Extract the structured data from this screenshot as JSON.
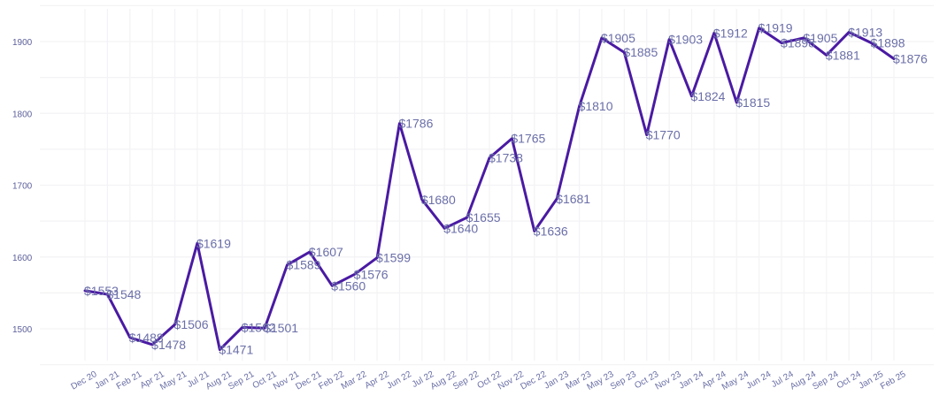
{
  "chart_data": {
    "type": "line",
    "title": "",
    "xlabel": "",
    "ylabel": "",
    "ylim": [
      1450,
      1950
    ],
    "yticks": [
      1500,
      1600,
      1700,
      1800,
      1900
    ],
    "grid": true,
    "legend": "none",
    "colors": {
      "line": "#4a1aa3",
      "label": "#6b6fa8",
      "tick": "#5b5f9a",
      "grid": "#f3f3f5"
    },
    "categories": [
      "Dec 20",
      "Jan 21",
      "Feb 21",
      "Apr 21",
      "May 21",
      "Jul 21",
      "Aug 21",
      "Sep 21",
      "Oct 21",
      "Nov 21",
      "Dec 21",
      "Feb 22",
      "Mar 22",
      "Apr 22",
      "Jun 22",
      "Jul 22",
      "Aug 22",
      "Sep 22",
      "Oct 22",
      "Nov 22",
      "Dec 22",
      "Jan 23",
      "Mar 23",
      "May 23",
      "Sep 23",
      "Oct 23",
      "Nov 23",
      "Jan 24",
      "Apr 24",
      "May 24",
      "Jun 24",
      "Jul 24",
      "Aug 24",
      "Sep 24",
      "Oct 24",
      "Jan 25",
      "Feb 25"
    ],
    "values": [
      1553,
      1548,
      1488,
      1478,
      1506,
      1619,
      1471,
      1502,
      1501,
      1589,
      1607,
      1560,
      1576,
      1599,
      1786,
      1680,
      1640,
      1655,
      1738,
      1765,
      1636,
      1681,
      1810,
      1905,
      1885,
      1770,
      1903,
      1824,
      1912,
      1815,
      1919,
      1898,
      1905,
      1881,
      1913,
      1898,
      1876
    ],
    "labels": [
      "$1553",
      "$1548",
      "$1488",
      "$1478",
      "$1506",
      "$1619",
      "$1471",
      "$1502",
      "$1501",
      "$1589",
      "$1607",
      "$1560",
      "$1576",
      "$1599",
      "$1786",
      "$1680",
      "$1640",
      "$1655",
      "$1738",
      "$1765",
      "$1636",
      "$1681",
      "$1810",
      "$1905",
      "$1885",
      "$1770",
      "$1903",
      "$1824",
      "$1912",
      "$1815",
      "$1919",
      "$1898",
      "$1905",
      "$1881",
      "$1913",
      "$1898",
      "$1876"
    ]
  }
}
